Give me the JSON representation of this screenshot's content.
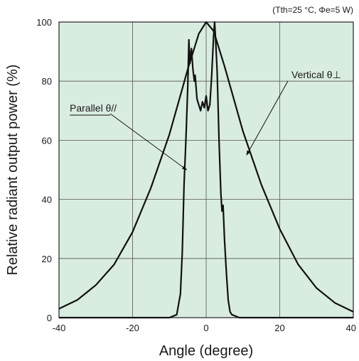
{
  "chart_data": {
    "type": "line",
    "conditions": "(Tth=25 °C, Φe=5 W)",
    "xlabel": "Angle (degree)",
    "ylabel": "Relative radiant output power (%)",
    "xlim": [
      -40,
      40
    ],
    "ylim": [
      0,
      100
    ],
    "xticks": [
      "-40",
      "-20",
      "0",
      "20",
      "40"
    ],
    "yticks": [
      "0",
      "20",
      "40",
      "60",
      "80",
      "100"
    ],
    "grid": true,
    "plot_background": "#d9ece0",
    "line_color": "#111111",
    "annotations": [
      {
        "label": "Parallel θ//",
        "series": "parallel"
      },
      {
        "label": "Vertical θ⊥",
        "series": "vertical"
      }
    ],
    "series": [
      {
        "key": "vertical",
        "x": [
          -40,
          -35,
          -30,
          -25,
          -20,
          -15,
          -10,
          -5,
          -2,
          0,
          2,
          5,
          10,
          15,
          20,
          25,
          30,
          35,
          40
        ],
        "y": [
          3,
          6,
          11,
          18,
          29,
          44,
          62,
          84,
          96,
          100,
          97,
          85,
          63,
          45,
          30,
          18,
          10,
          5,
          2
        ]
      },
      {
        "key": "parallel",
        "x": [
          -40,
          -18,
          -10,
          -8,
          -7,
          -6.5,
          -6,
          -5.5,
          -5,
          -4.7,
          -4.4,
          -4,
          -3.6,
          -3.2,
          -3,
          -2.5,
          -2,
          -1.5,
          -1,
          -0.5,
          0,
          0.5,
          1,
          1.5,
          2,
          2.3,
          2.6,
          3,
          3.5,
          4,
          4.3,
          4.6,
          5,
          5.5,
          6,
          6.5,
          7,
          8,
          9,
          12,
          40
        ],
        "y": [
          0,
          0,
          0,
          1,
          8,
          22,
          45,
          60,
          78,
          94,
          86,
          91,
          84,
          80,
          82,
          74,
          72,
          70,
          73,
          71,
          75,
          70,
          72,
          82,
          95,
          100,
          93,
          83,
          60,
          42,
          36,
          38,
          26,
          15,
          6,
          2,
          1,
          0.5,
          0,
          0,
          0
        ]
      }
    ]
  }
}
